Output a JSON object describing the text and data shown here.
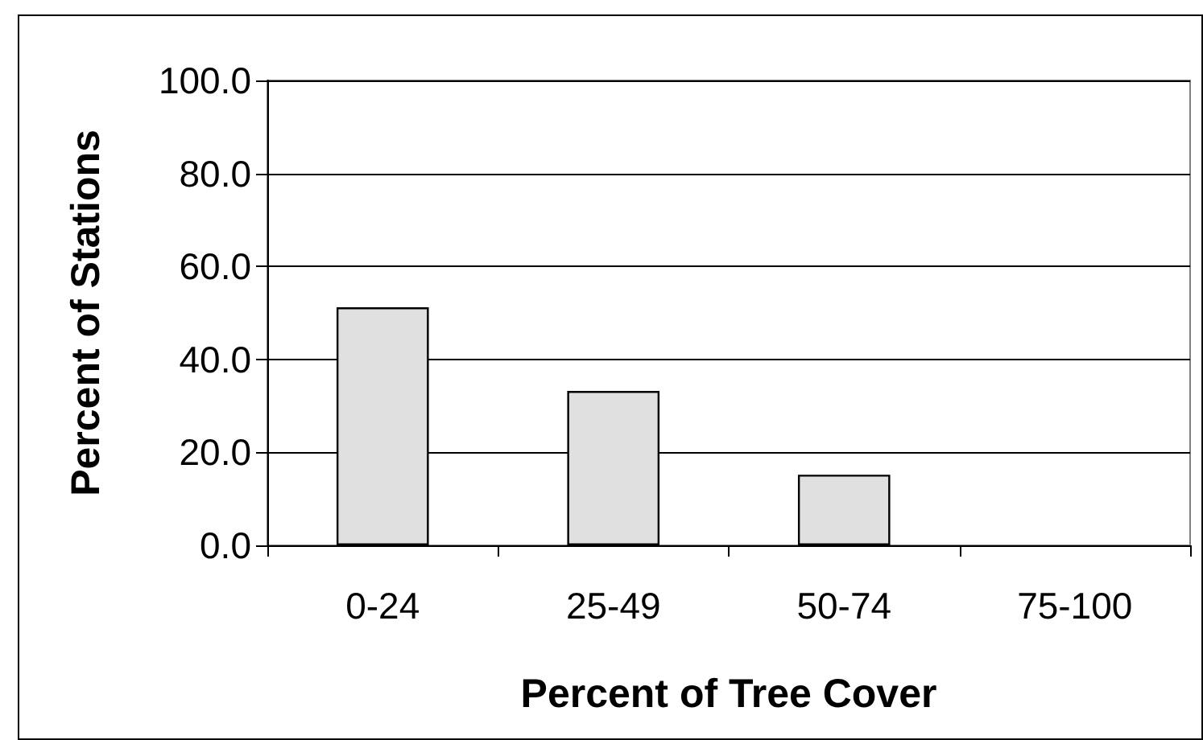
{
  "chart_data": {
    "type": "bar",
    "xlabel": "Percent of Tree Cover",
    "ylabel": "Percent of Stations",
    "categories": [
      "0-24",
      "25-49",
      "50-74",
      "75-100"
    ],
    "values": [
      51.2,
      33.2,
      15.2,
      0
    ],
    "color": "#e0e0e0",
    "ylim": [
      0,
      100
    ],
    "yticks": [
      {
        "value": 0,
        "label": "0.0"
      },
      {
        "value": 20,
        "label": "20.0"
      },
      {
        "value": 40,
        "label": "40.0"
      },
      {
        "value": 60,
        "label": "60.0"
      },
      {
        "value": 80,
        "label": "80.0"
      },
      {
        "value": 100,
        "label": "100.0"
      }
    ],
    "grid": "y"
  }
}
